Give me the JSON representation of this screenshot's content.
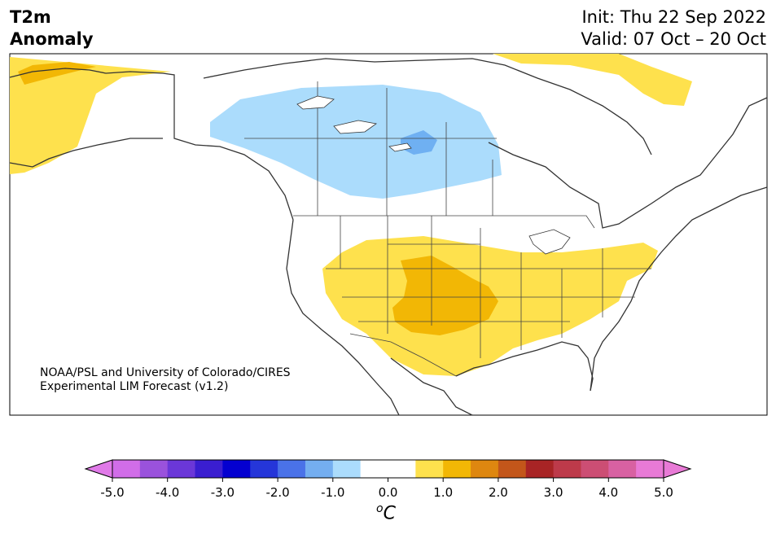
{
  "title": {
    "line1": "T2m",
    "line2": "Anomaly"
  },
  "dates": {
    "init": "Init: Thu 22 Sep 2022",
    "valid": "Valid: 07 Oct – 20 Oct"
  },
  "credit": {
    "line1": "NOAA/PSL and University of Colorado/CIRES",
    "line2": "Experimental LIM Forecast (v1.2)"
  },
  "map": {
    "region": "North America",
    "anomaly_areas": [
      {
        "area": "Central Canada",
        "category": "-1.0",
        "color": "#abdcfc"
      },
      {
        "area": "Manitoba core",
        "category": "-1.5",
        "color": "#6fb0f2"
      },
      {
        "area": "Alaska",
        "category": "+1.0",
        "color": "#fee14d"
      },
      {
        "area": "Greenland",
        "category": "+1.0",
        "color": "#fee14d"
      },
      {
        "area": "Southwestern & Central US",
        "category": "+1.0",
        "color": "#fee14d"
      },
      {
        "area": "Southern Plains",
        "category": "+1.5",
        "color": "#f2b705"
      }
    ]
  },
  "colorbar": {
    "unit_base": "C",
    "unit_sup": "o",
    "ticks": [
      "-5.0",
      "-4.0",
      "-3.0",
      "-2.0",
      "-1.0",
      "0.0",
      "1.0",
      "2.0",
      "3.0",
      "4.0",
      "5.0"
    ],
    "below_color": "#e07ae8",
    "above_color": "#e87ad6",
    "colors": [
      "#d16de8",
      "#9a52dc",
      "#6b37d8",
      "#3a1ed0",
      "#0400d0",
      "#2536d9",
      "#4a72e8",
      "#74aef0",
      "#abdcfc",
      "#ffffff",
      "#ffffff",
      "#fee14d",
      "#f2b705",
      "#de8710",
      "#c3561a",
      "#a82425",
      "#bd3a4a",
      "#cc4e74",
      "#d861a2",
      "#e87ad6"
    ]
  }
}
